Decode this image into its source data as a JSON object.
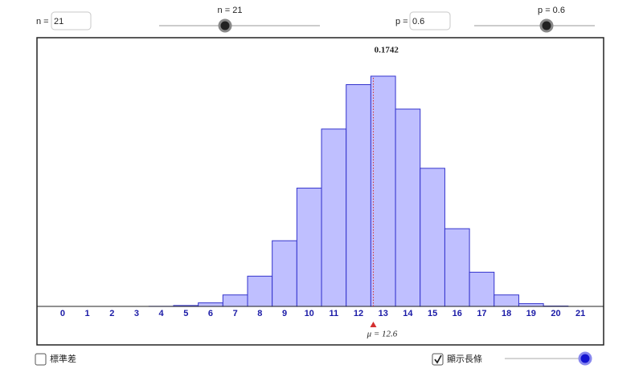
{
  "controls": {
    "n_label": "n =",
    "n_input": "21",
    "n_slider_label": "n = 21",
    "p_label": "p =",
    "p_input": "0.6",
    "p_slider_label": "p = 0.6",
    "sd_checkbox": "標準差",
    "bars_checkbox": "顯示長條"
  },
  "chart_data": {
    "type": "bar",
    "x": [
      0,
      1,
      2,
      3,
      4,
      5,
      6,
      7,
      8,
      9,
      10,
      11,
      12,
      13,
      14,
      15,
      16,
      17,
      18,
      19,
      20,
      21
    ],
    "values": [
      0,
      0,
      0,
      0,
      0.0001,
      0.0007,
      0.0027,
      0.0087,
      0.0229,
      0.0497,
      0.0895,
      0.1342,
      0.1678,
      0.1742,
      0.1493,
      0.1045,
      0.0588,
      0.0259,
      0.0087,
      0.0021,
      0.0003,
      0
    ],
    "color": "#bfbfff",
    "edge_color": "#3333cc",
    "xlim": [
      -1.04,
      21.94
    ],
    "ylim": [
      -0.0291,
      0.2033
    ],
    "mean": 12.6,
    "mean_label": "μ = 12.6",
    "mean_color": "#d32f2f"
  }
}
